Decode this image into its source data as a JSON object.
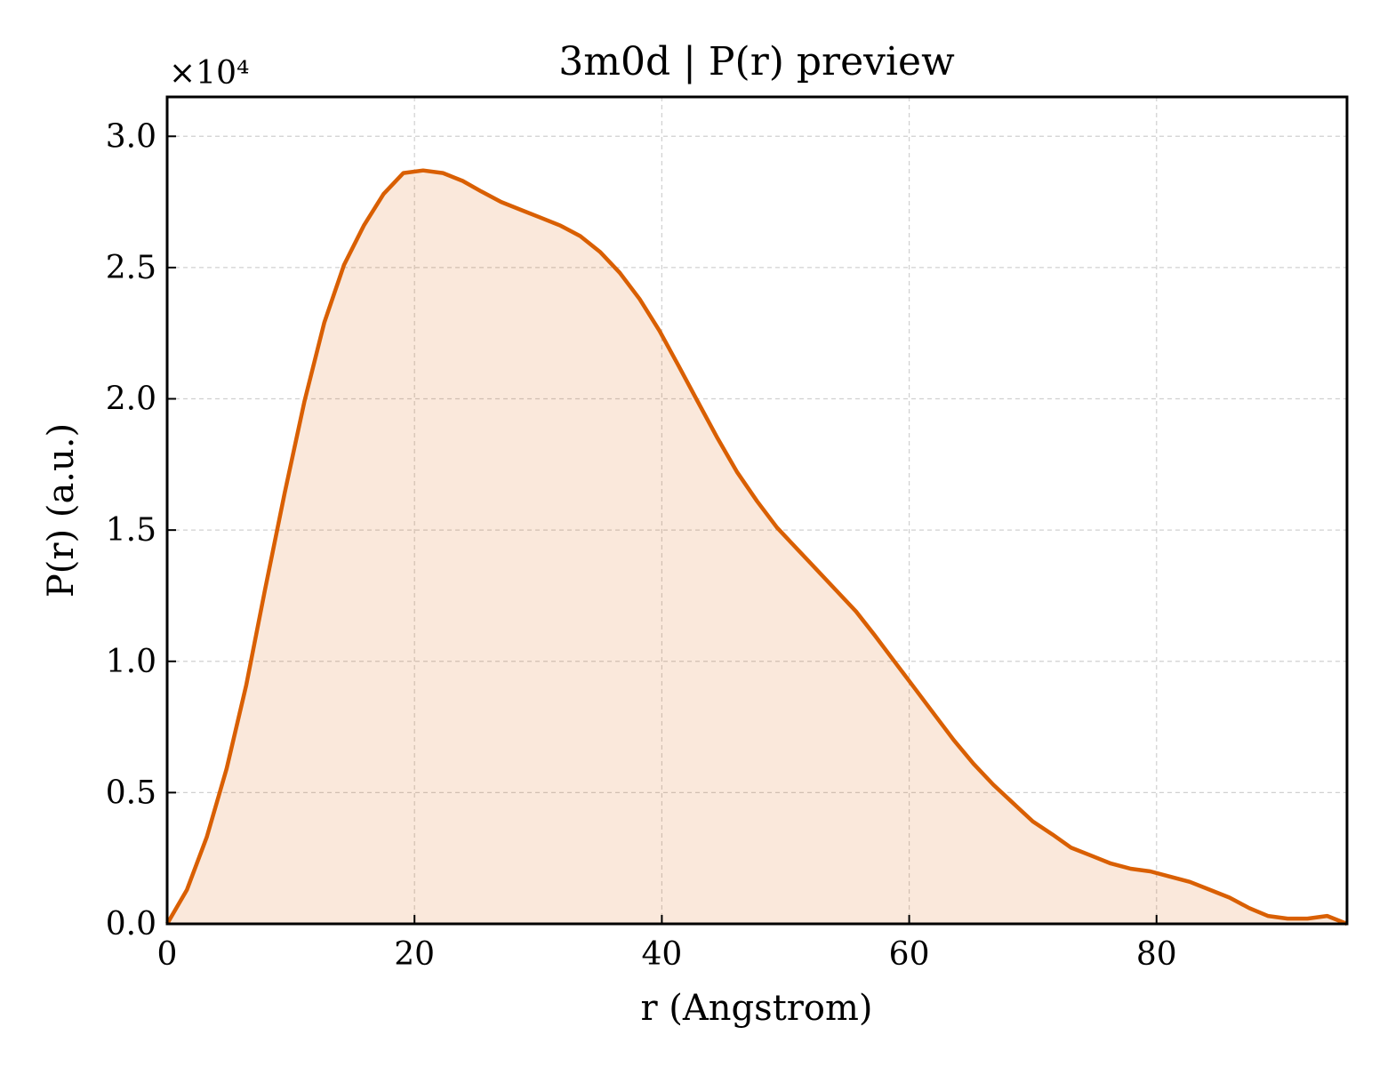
{
  "chart_data": {
    "type": "area",
    "title": "3m0d | P(r) preview",
    "xlabel": "r (Angstrom)",
    "ylabel": "P(r) (a.u.)",
    "y_offset_label": "×10⁴",
    "xlim": [
      0,
      95.4
    ],
    "ylim": [
      0,
      3.15
    ],
    "xticks": [
      0,
      20,
      40,
      60,
      80
    ],
    "xtick_labels": [
      "0",
      "20",
      "40",
      "60",
      "80"
    ],
    "yticks": [
      0.0,
      0.5,
      1.0,
      1.5,
      2.0,
      2.5,
      3.0
    ],
    "ytick_labels": [
      "0.0",
      "0.5",
      "1.0",
      "1.5",
      "2.0",
      "2.5",
      "3.0"
    ],
    "grid": true,
    "line_color": "#d95f02",
    "fill_color": "#d95f02",
    "fill_opacity": 0.14,
    "series": [
      {
        "x": [
          0,
          1.6,
          3.2,
          4.8,
          6.4,
          7.9,
          9.5,
          11.1,
          12.7,
          14.3,
          15.9,
          17.5,
          19.1,
          20.7,
          22.3,
          23.9,
          25.4,
          27.0,
          28.6,
          30.2,
          31.8,
          33.4,
          35.0,
          36.6,
          38.2,
          39.8,
          41.3,
          42.9,
          44.5,
          46.1,
          47.7,
          49.3,
          50.9,
          52.5,
          54.1,
          55.7,
          57.2,
          58.8,
          60.4,
          62.0,
          63.6,
          65.2,
          66.8,
          68.4,
          70.0,
          71.6,
          73.1,
          74.7,
          76.3,
          77.9,
          79.5,
          81.1,
          82.7,
          84.3,
          85.9,
          87.5,
          89.0,
          90.6,
          92.2,
          93.8,
          95.4
        ],
        "y": [
          0.0,
          0.13,
          0.33,
          0.59,
          0.91,
          1.27,
          1.64,
          1.99,
          2.29,
          2.51,
          2.66,
          2.78,
          2.86,
          2.87,
          2.86,
          2.83,
          2.79,
          2.75,
          2.72,
          2.69,
          2.66,
          2.62,
          2.56,
          2.48,
          2.38,
          2.26,
          2.13,
          1.99,
          1.85,
          1.72,
          1.61,
          1.51,
          1.43,
          1.35,
          1.27,
          1.19,
          1.1,
          1.0,
          0.9,
          0.8,
          0.7,
          0.61,
          0.53,
          0.46,
          0.39,
          0.34,
          0.29,
          0.26,
          0.23,
          0.21,
          0.2,
          0.18,
          0.16,
          0.13,
          0.1,
          0.06,
          0.03,
          0.02,
          0.02,
          0.03,
          0.0
        ]
      }
    ]
  }
}
